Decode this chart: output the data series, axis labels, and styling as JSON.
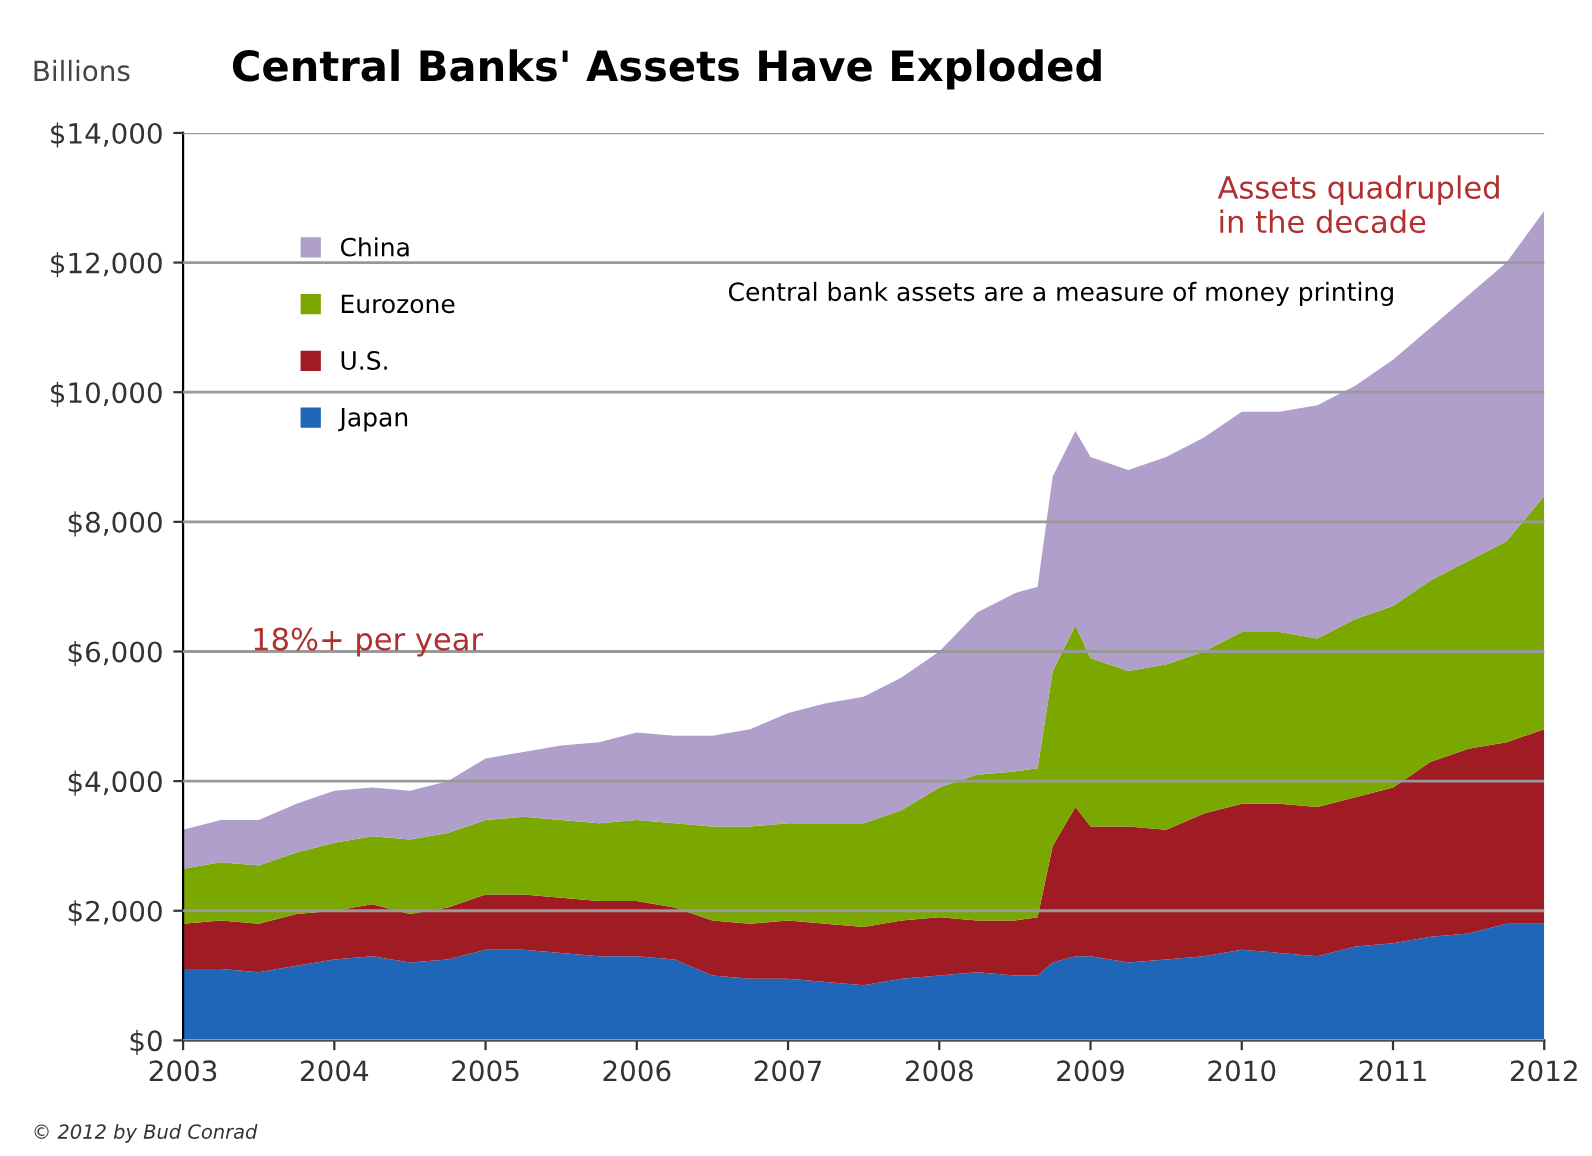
{
  "chart_data": {
    "type": "area",
    "stacked": true,
    "title": "Central Banks' Assets Have Exploded",
    "ylabel": "Billions",
    "x": [
      2003.0,
      2003.25,
      2003.5,
      2003.75,
      2004.0,
      2004.25,
      2004.5,
      2004.75,
      2005.0,
      2005.25,
      2005.5,
      2005.75,
      2006.0,
      2006.25,
      2006.5,
      2006.75,
      2007.0,
      2007.25,
      2007.5,
      2007.75,
      2008.0,
      2008.25,
      2008.5,
      2008.65,
      2008.75,
      2008.9,
      2009.0,
      2009.25,
      2009.5,
      2009.75,
      2010.0,
      2010.25,
      2010.5,
      2010.75,
      2011.0,
      2011.25,
      2011.5,
      2011.75,
      2012.0
    ],
    "series": [
      {
        "name": "Japan",
        "color": "#1f66b8",
        "values": [
          1100,
          1100,
          1050,
          1150,
          1250,
          1300,
          1200,
          1250,
          1400,
          1400,
          1350,
          1300,
          1300,
          1250,
          1000,
          950,
          950,
          900,
          850,
          950,
          1000,
          1050,
          1000,
          1000,
          1200,
          1300,
          1300,
          1200,
          1250,
          1300,
          1400,
          1350,
          1300,
          1450,
          1500,
          1600,
          1650,
          1800,
          1800
        ]
      },
      {
        "name": "U.S.",
        "color": "#a01c24",
        "values": [
          700,
          750,
          750,
          800,
          750,
          800,
          750,
          800,
          850,
          850,
          850,
          850,
          850,
          800,
          850,
          850,
          900,
          900,
          900,
          900,
          900,
          800,
          850,
          900,
          1800,
          2300,
          2000,
          2100,
          2000,
          2200,
          2250,
          2300,
          2300,
          2300,
          2400,
          2700,
          2850,
          2800,
          3000
        ]
      },
      {
        "name": "Eurozone",
        "color": "#7aa800",
        "values": [
          850,
          900,
          900,
          950,
          1050,
          1050,
          1150,
          1150,
          1150,
          1200,
          1200,
          1200,
          1250,
          1300,
          1450,
          1500,
          1500,
          1550,
          1600,
          1700,
          2000,
          2250,
          2300,
          2300,
          2700,
          2800,
          2600,
          2400,
          2550,
          2500,
          2650,
          2650,
          2600,
          2750,
          2800,
          2800,
          2900,
          3100,
          3600
        ]
      },
      {
        "name": "China",
        "color": "#b09fcb",
        "values": [
          600,
          650,
          700,
          750,
          800,
          750,
          750,
          800,
          950,
          1000,
          1150,
          1250,
          1350,
          1350,
          1400,
          1500,
          1700,
          1850,
          1950,
          2050,
          2100,
          2500,
          2750,
          2800,
          3000,
          3000,
          3100,
          3100,
          3200,
          3300,
          3400,
          3400,
          3600,
          3600,
          3800,
          3900,
          4100,
          4300,
          4400
        ]
      }
    ],
    "xlim": [
      2003,
      2012
    ],
    "xticks": [
      2003,
      2004,
      2005,
      2006,
      2007,
      2008,
      2009,
      2010,
      2011,
      2012
    ],
    "ylim": [
      0,
      14000
    ],
    "yticks": [
      {
        "value": 0,
        "label": "$0"
      },
      {
        "value": 2000,
        "label": "$2,000"
      },
      {
        "value": 4000,
        "label": "$4,000"
      },
      {
        "value": 6000,
        "label": "$6,000"
      },
      {
        "value": 8000,
        "label": "$8,000"
      },
      {
        "value": 10000,
        "label": "$10,000"
      },
      {
        "value": 12000,
        "label": "$12,000"
      },
      {
        "value": 14000,
        "label": "$14,000"
      }
    ],
    "grid": "y",
    "legend": "top left",
    "annotations": [
      "Central bank assets are a measure of money printing",
      "Assets quadrupled\nin the decade",
      "18%+ per year",
      "© 2012 by Bud Conrad"
    ]
  }
}
